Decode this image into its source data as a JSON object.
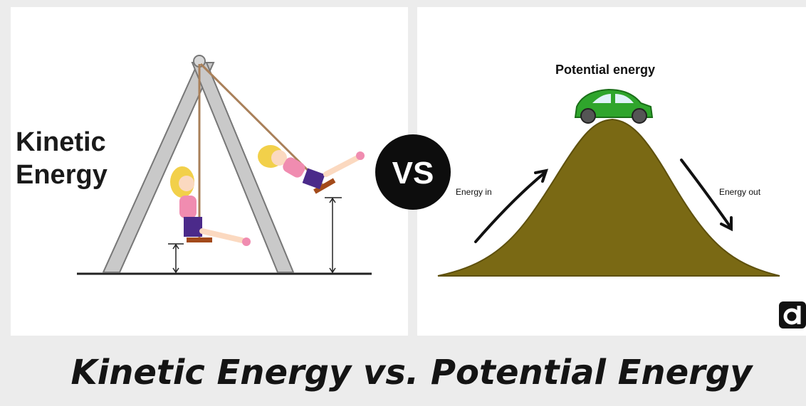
{
  "left": {
    "title_line1": "Kinetic",
    "title_line2": "Energy"
  },
  "center": {
    "badge": "VS"
  },
  "right": {
    "title": "Potential energy",
    "arrow_in": "Energy in",
    "arrow_out": "Energy out"
  },
  "footer": {
    "title": "Kinetic Energy vs. Potential Energy"
  }
}
